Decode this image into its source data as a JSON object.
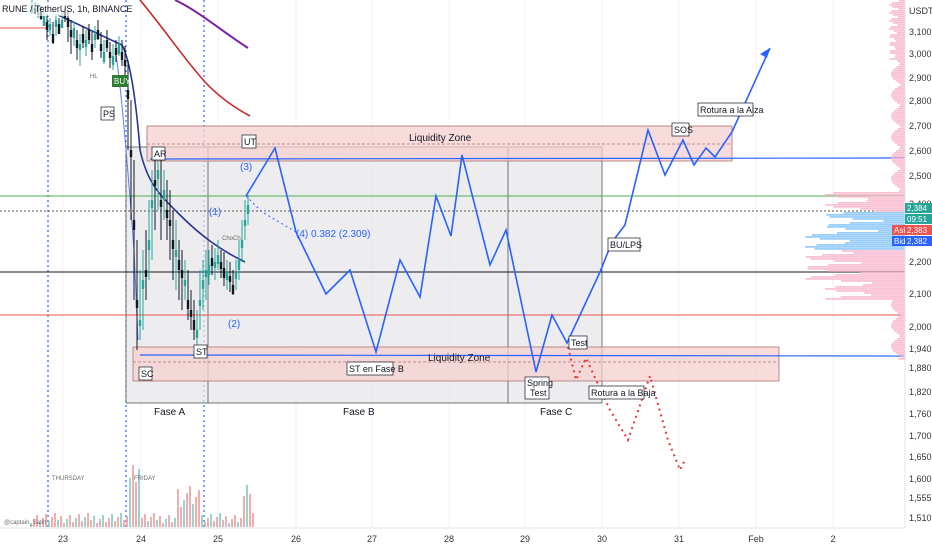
{
  "header": {
    "symbol_title": "RUNE / TetherUS, 1h, BINANCE"
  },
  "currency": "USDT",
  "chart_data": {
    "type": "candlestick",
    "x_ticks": [
      "23",
      "24",
      "25",
      "26",
      "27",
      "28",
      "29",
      "30",
      "31",
      "Feb",
      "2"
    ],
    "y_ticks": [
      3100,
      3000,
      2900,
      2800,
      2700,
      2600,
      2500,
      2400,
      2300,
      2200,
      2100,
      2000,
      1940,
      1880,
      1820,
      1760,
      1700,
      1650,
      1600,
      1555,
      1510
    ],
    "y_tick_labels": [
      "3,100",
      "3,000",
      "2,900",
      "2,800",
      "2,700",
      "2,600",
      "2,500",
      "2,400",
      "2,300",
      "2,200",
      "2,100",
      "2,000",
      "1,940",
      "1,880",
      "1,820",
      "1,760",
      "1,700",
      "1,650",
      "1,600",
      "1,555",
      "1,510"
    ],
    "price_tags": [
      {
        "label": "2,384",
        "value": 2384,
        "color": "#26a69a"
      },
      {
        "label": "09:51",
        "value": 2365,
        "color": "#26a69a"
      },
      {
        "label": "Ask",
        "value": 2335,
        "color": "#ef5350"
      },
      {
        "label": "2,383",
        "value": 2335,
        "color": "#ef5350"
      },
      {
        "label": "Bid",
        "value": 2310,
        "color": "#2962ff"
      },
      {
        "label": "2,382",
        "value": 2310,
        "color": "#2962ff"
      }
    ],
    "zones": [
      {
        "label": "Liquidity Zone",
        "top": 2705,
        "bottom": 2560,
        "x_from": 24.1,
        "x_to": 31.7
      },
      {
        "label": "Liquidity Zone",
        "top": 1935,
        "bottom": 1855,
        "x_from": 23.9,
        "x_to": 32.3
      }
    ],
    "range_box": {
      "top": 2630,
      "bottom": 1780,
      "x_from": 23.8,
      "x_to": 30.0
    },
    "phases": [
      {
        "label": "Fase A",
        "x": 24.3
      },
      {
        "label": "Fase  B",
        "x": 27.2
      },
      {
        "label": "Fase  C",
        "x": 29.35
      }
    ],
    "wyckoff_labels": [
      "PS",
      "SC",
      "AR",
      "ST",
      "UT",
      "ST en Fase B",
      "Spring Test",
      "Test",
      "BU/LPS",
      "SOS",
      "Rotura a la Alza",
      "Rotura a la Baja"
    ],
    "wave_labels": [
      "(1)",
      "(2)",
      "(3)",
      "(4) 0.382 (2.309)"
    ],
    "horizontal_levels": [
      {
        "value": 2580,
        "color": "#2962ff"
      },
      {
        "value": 2455,
        "color": "#4caf50"
      },
      {
        "value": 2400,
        "color": "#555555"
      },
      {
        "value": 2180,
        "color": "#131722"
      },
      {
        "value": 2035,
        "color": "#ef5350"
      },
      {
        "value": 1905,
        "color": "#2962ff"
      }
    ],
    "projection_bullish": [
      [
        25.6,
        2460
      ],
      [
        26.0,
        2630
      ],
      [
        26.5,
        2120
      ],
      [
        27.0,
        1950
      ],
      [
        27.5,
        2230
      ],
      [
        28.0,
        1950
      ],
      [
        28.5,
        2380
      ],
      [
        29.0,
        2000
      ],
      [
        29.5,
        2480
      ],
      [
        30.0,
        2520
      ],
      [
        30.5,
        2150
      ],
      [
        31.0,
        2460
      ],
      [
        31.3,
        2650
      ],
      [
        31.7,
        2700
      ],
      [
        32.0,
        2580
      ],
      [
        32.3,
        2650
      ],
      [
        32.6,
        2550
      ],
      [
        32.9,
        2600
      ],
      [
        33.2,
        2580
      ],
      [
        33.5,
        3000
      ]
    ]
  },
  "day_markers": [
    "THURSDAY",
    "FRIDAY"
  ],
  "indicator_labels": [
    "BUY",
    "HL",
    "ChoCh"
  ],
  "colors": {
    "zone_fill": "#f5d0d0",
    "zone_border": "#b07070",
    "range_fill": "#e6e6ea",
    "projection": "#2962ff",
    "bear_projection": "#e53935",
    "ma_fast": "#283593",
    "ma_slow": "#c62828",
    "ma_long": "#7b1fa2"
  },
  "watermark": "@captain_Satin"
}
